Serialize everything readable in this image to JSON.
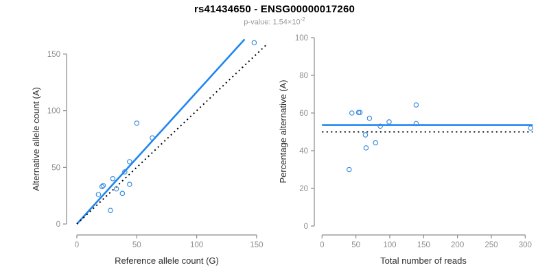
{
  "title": "rs41434650 - ENSG00000017260",
  "subtitle": {
    "text": "p-value: 1.54×10",
    "exponent": "-2",
    "full": "p-value: 1.54×10^-2"
  },
  "colors": {
    "accent_blue": "#1E86F0",
    "point_blue": "#3C8EDE",
    "reference_black": "#000000",
    "axis_gray": "#8a8a8a",
    "tick_label_gray": "#8e8e8e",
    "axis_title_color": "#2b2b2b"
  },
  "chart_data": [
    {
      "type": "scatter",
      "panel": "left",
      "xlabel": "Reference allele count (G)",
      "ylabel": "Alternative allele count (A)",
      "xticks": [
        0,
        50,
        100,
        150
      ],
      "yticks": [
        0,
        50,
        100,
        150
      ],
      "xlim": [
        0,
        158
      ],
      "ylim": [
        0,
        165
      ],
      "grid": false,
      "legend": "none",
      "points": [
        [
          18,
          26
        ],
        [
          21,
          33
        ],
        [
          22,
          34
        ],
        [
          28,
          12
        ],
        [
          30,
          40
        ],
        [
          33,
          31
        ],
        [
          38,
          27
        ],
        [
          40,
          46
        ],
        [
          44,
          35
        ],
        [
          44,
          55
        ],
        [
          50,
          89
        ],
        [
          63,
          76
        ],
        [
          148,
          160
        ]
      ],
      "lines": [
        {
          "name": "fit-line",
          "style": "solid",
          "color": "blue",
          "x1": 0,
          "y1": 0,
          "x2": 140,
          "y2": 163,
          "slope": 1.17
        },
        {
          "name": "identity-line",
          "style": "dotted",
          "color": "black",
          "x1": 0,
          "y1": 0,
          "x2": 158,
          "y2": 158,
          "slope": 1.0
        }
      ]
    },
    {
      "type": "scatter",
      "panel": "right",
      "xlabel": "Total number of reads",
      "ylabel": "Percentage alternative (A)",
      "xticks": [
        0,
        50,
        100,
        150,
        200,
        250,
        300
      ],
      "yticks": [
        0,
        20,
        40,
        60,
        80,
        100
      ],
      "xlim": [
        0,
        311
      ],
      "ylim": [
        0,
        100
      ],
      "grid": false,
      "legend": "none",
      "points": [
        [
          40,
          30
        ],
        [
          44,
          60
        ],
        [
          54,
          60.3
        ],
        [
          56,
          60.3
        ],
        [
          64,
          48.4
        ],
        [
          65,
          41.5
        ],
        [
          70,
          57.2
        ],
        [
          79,
          44.2
        ],
        [
          86,
          53
        ],
        [
          99,
          55.3
        ],
        [
          139,
          64.3
        ],
        [
          139,
          54.4
        ],
        [
          308,
          52
        ]
      ],
      "lines": [
        {
          "name": "mean-line",
          "style": "solid",
          "color": "blue",
          "x1": 0,
          "y1": 53.6,
          "x2": 311,
          "y2": 53.6,
          "value": 53.6
        },
        {
          "name": "null-line",
          "style": "dotted",
          "color": "black",
          "x1": 0,
          "y1": 50,
          "x2": 311,
          "y2": 50,
          "value": 50
        }
      ]
    }
  ]
}
